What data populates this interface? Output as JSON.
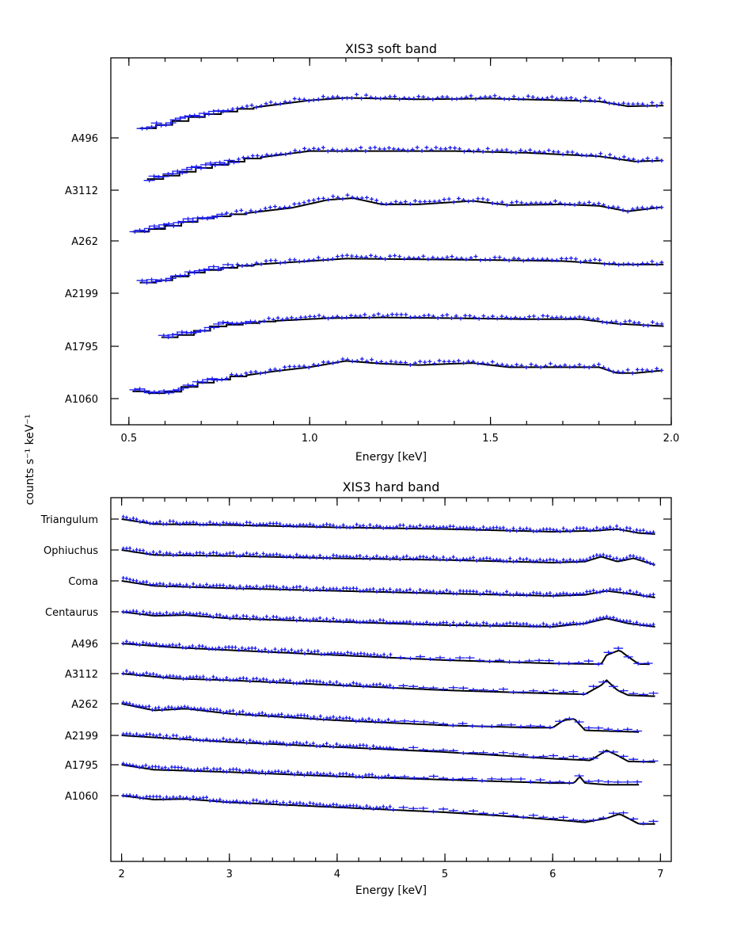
{
  "figure": {
    "ylabel": "counts s⁻¹ keV⁻¹"
  },
  "chart_data": [
    {
      "type": "line",
      "title": "XIS3 soft band",
      "xlabel": "Energy [keV]",
      "xlim": [
        0.45,
        2.0
      ],
      "xticks": [
        0.5,
        1.0,
        1.5,
        2.0
      ],
      "xtick_labels": [
        "0.5",
        "1.0",
        "1.5",
        "2.0"
      ],
      "yaxis": "offset spectra, one per cluster (arbitrary units)",
      "model_color": "#000000",
      "data_color": "#1a1af0",
      "series": [
        {
          "name": "A1060",
          "x_start": 0.51,
          "x_end": 1.98,
          "points": [
            [
              0.51,
              0.05
            ],
            [
              0.6,
              -0.05
            ],
            [
              0.7,
              0.25
            ],
            [
              0.8,
              0.45
            ],
            [
              0.9,
              0.6
            ],
            [
              1.0,
              0.72
            ],
            [
              1.1,
              0.9
            ],
            [
              1.2,
              0.82
            ],
            [
              1.3,
              0.78
            ],
            [
              1.45,
              0.84
            ],
            [
              1.55,
              0.72
            ],
            [
              1.7,
              0.72
            ],
            [
              1.8,
              0.72
            ],
            [
              1.85,
              0.55
            ],
            [
              1.9,
              0.55
            ],
            [
              1.98,
              0.63
            ]
          ]
        },
        {
          "name": "A1795",
          "x_start": 0.59,
          "x_end": 1.98,
          "points": [
            [
              0.59,
              0.0
            ],
            [
              0.66,
              0.1
            ],
            [
              0.75,
              0.35
            ],
            [
              0.9,
              0.5
            ],
            [
              1.05,
              0.58
            ],
            [
              1.2,
              0.6
            ],
            [
              1.4,
              0.58
            ],
            [
              1.6,
              0.55
            ],
            [
              1.75,
              0.55
            ],
            [
              1.85,
              0.42
            ],
            [
              1.98,
              0.35
            ]
          ]
        },
        {
          "name": "A2199",
          "x_start": 0.53,
          "x_end": 1.98,
          "points": [
            [
              0.53,
              0.0
            ],
            [
              0.6,
              0.1
            ],
            [
              0.7,
              0.35
            ],
            [
              0.85,
              0.55
            ],
            [
              1.0,
              0.65
            ],
            [
              1.1,
              0.72
            ],
            [
              1.3,
              0.7
            ],
            [
              1.5,
              0.68
            ],
            [
              1.7,
              0.65
            ],
            [
              1.85,
              0.55
            ],
            [
              1.98,
              0.55
            ]
          ]
        },
        {
          "name": "A262",
          "x_start": 0.51,
          "x_end": 1.98,
          "points": [
            [
              0.51,
              0.0
            ],
            [
              0.6,
              0.15
            ],
            [
              0.7,
              0.4
            ],
            [
              0.85,
              0.6
            ],
            [
              0.95,
              0.72
            ],
            [
              1.05,
              0.95
            ],
            [
              1.12,
              1.0
            ],
            [
              1.2,
              0.82
            ],
            [
              1.3,
              0.82
            ],
            [
              1.45,
              0.92
            ],
            [
              1.55,
              0.8
            ],
            [
              1.7,
              0.82
            ],
            [
              1.8,
              0.78
            ],
            [
              1.88,
              0.62
            ],
            [
              1.98,
              0.75
            ]
          ]
        },
        {
          "name": "A3112",
          "x_start": 0.55,
          "x_end": 1.98,
          "points": [
            [
              0.55,
              0.0
            ],
            [
              0.62,
              0.15
            ],
            [
              0.7,
              0.35
            ],
            [
              0.85,
              0.65
            ],
            [
              1.0,
              0.85
            ],
            [
              1.15,
              0.85
            ],
            [
              1.4,
              0.85
            ],
            [
              1.6,
              0.8
            ],
            [
              1.8,
              0.7
            ],
            [
              1.9,
              0.55
            ],
            [
              1.98,
              0.58
            ]
          ]
        },
        {
          "name": "A496",
          "x_start": 0.53,
          "x_end": 1.98,
          "points": [
            [
              0.53,
              0.0
            ],
            [
              0.6,
              0.15
            ],
            [
              0.7,
              0.4
            ],
            [
              0.85,
              0.65
            ],
            [
              1.0,
              0.85
            ],
            [
              1.1,
              0.92
            ],
            [
              1.3,
              0.88
            ],
            [
              1.5,
              0.9
            ],
            [
              1.7,
              0.85
            ],
            [
              1.8,
              0.82
            ],
            [
              1.88,
              0.68
            ],
            [
              1.98,
              0.7
            ]
          ]
        }
      ]
    },
    {
      "type": "line",
      "title": "XIS3 hard band",
      "xlabel": "Energy [keV]",
      "xlim": [
        1.9,
        7.1
      ],
      "xticks": [
        2,
        3,
        4,
        5,
        6,
        7
      ],
      "xtick_labels": [
        "2",
        "3",
        "4",
        "5",
        "6",
        "7"
      ],
      "yaxis": "offset spectra, one per cluster (arbitrary units)",
      "model_color": "#000000",
      "data_color": "#1a1af0",
      "series": [
        {
          "name": "A1060",
          "x_start": 2.0,
          "x_end": 6.95,
          "points": [
            [
              2.0,
              0.0
            ],
            [
              2.3,
              -0.12
            ],
            [
              2.6,
              -0.1
            ],
            [
              3.0,
              -0.2
            ],
            [
              4.0,
              -0.35
            ],
            [
              5.0,
              -0.5
            ],
            [
              5.5,
              -0.6
            ],
            [
              6.0,
              -0.72
            ],
            [
              6.3,
              -0.8
            ],
            [
              6.5,
              -0.68
            ],
            [
              6.62,
              -0.55
            ],
            [
              6.7,
              -0.68
            ],
            [
              6.8,
              -0.85
            ],
            [
              6.95,
              -0.85
            ]
          ]
        },
        {
          "name": "A1795",
          "x_start": 2.0,
          "x_end": 6.8,
          "points": [
            [
              2.0,
              0.0
            ],
            [
              2.3,
              -0.15
            ],
            [
              3.0,
              -0.22
            ],
            [
              4.0,
              -0.35
            ],
            [
              5.0,
              -0.45
            ],
            [
              6.0,
              -0.55
            ],
            [
              6.2,
              -0.55
            ],
            [
              6.25,
              -0.35
            ],
            [
              6.3,
              -0.55
            ],
            [
              6.5,
              -0.6
            ],
            [
              6.8,
              -0.6
            ]
          ]
        },
        {
          "name": "A2199",
          "x_start": 2.0,
          "x_end": 6.95,
          "points": [
            [
              2.0,
              0.0
            ],
            [
              3.0,
              -0.2
            ],
            [
              4.0,
              -0.35
            ],
            [
              5.0,
              -0.5
            ],
            [
              6.0,
              -0.7
            ],
            [
              6.35,
              -0.75
            ],
            [
              6.45,
              -0.55
            ],
            [
              6.5,
              -0.45
            ],
            [
              6.6,
              -0.6
            ],
            [
              6.7,
              -0.78
            ],
            [
              6.95,
              -0.8
            ]
          ]
        },
        {
          "name": "A262",
          "x_start": 2.0,
          "x_end": 6.8,
          "points": [
            [
              2.0,
              0.0
            ],
            [
              2.3,
              -0.2
            ],
            [
              2.6,
              -0.15
            ],
            [
              3.0,
              -0.3
            ],
            [
              4.0,
              -0.5
            ],
            [
              5.0,
              -0.65
            ],
            [
              5.8,
              -0.72
            ],
            [
              6.0,
              -0.72
            ],
            [
              6.1,
              -0.5
            ],
            [
              6.2,
              -0.45
            ],
            [
              6.3,
              -0.8
            ],
            [
              6.5,
              -0.82
            ],
            [
              6.8,
              -0.85
            ]
          ]
        },
        {
          "name": "A3112",
          "x_start": 2.0,
          "x_end": 6.95,
          "points": [
            [
              2.0,
              0.0
            ],
            [
              2.5,
              -0.15
            ],
            [
              3.0,
              -0.2
            ],
            [
              4.0,
              -0.35
            ],
            [
              5.0,
              -0.5
            ],
            [
              6.0,
              -0.6
            ],
            [
              6.3,
              -0.62
            ],
            [
              6.45,
              -0.35
            ],
            [
              6.5,
              -0.2
            ],
            [
              6.6,
              -0.5
            ],
            [
              6.7,
              -0.65
            ],
            [
              6.95,
              -0.68
            ]
          ]
        },
        {
          "name": "A496",
          "x_start": 2.0,
          "x_end": 6.9,
          "points": [
            [
              2.0,
              0.0
            ],
            [
              2.5,
              -0.12
            ],
            [
              3.0,
              -0.2
            ],
            [
              4.0,
              -0.35
            ],
            [
              5.0,
              -0.5
            ],
            [
              6.0,
              -0.6
            ],
            [
              6.45,
              -0.62
            ],
            [
              6.5,
              -0.35
            ],
            [
              6.62,
              -0.2
            ],
            [
              6.7,
              -0.4
            ],
            [
              6.8,
              -0.62
            ],
            [
              6.9,
              -0.62
            ]
          ]
        },
        {
          "name": "Centaurus",
          "x_start": 2.0,
          "x_end": 6.95,
          "points": [
            [
              2.0,
              0.0
            ],
            [
              2.3,
              -0.12
            ],
            [
              2.6,
              -0.1
            ],
            [
              3.0,
              -0.2
            ],
            [
              4.0,
              -0.3
            ],
            [
              5.0,
              -0.4
            ],
            [
              6.0,
              -0.45
            ],
            [
              6.3,
              -0.35
            ],
            [
              6.5,
              -0.2
            ],
            [
              6.7,
              -0.35
            ],
            [
              6.95,
              -0.45
            ]
          ]
        },
        {
          "name": "Coma",
          "x_start": 2.0,
          "x_end": 6.95,
          "points": [
            [
              2.0,
              0.0
            ],
            [
              2.3,
              -0.15
            ],
            [
              3.0,
              -0.22
            ],
            [
              4.0,
              -0.3
            ],
            [
              5.0,
              -0.38
            ],
            [
              6.0,
              -0.45
            ],
            [
              6.3,
              -0.42
            ],
            [
              6.5,
              -0.3
            ],
            [
              6.7,
              -0.38
            ],
            [
              6.95,
              -0.5
            ]
          ]
        },
        {
          "name": "Ophiuchus",
          "x_start": 2.0,
          "x_end": 6.95,
          "points": [
            [
              2.0,
              0.0
            ],
            [
              2.3,
              -0.15
            ],
            [
              3.0,
              -0.18
            ],
            [
              4.0,
              -0.25
            ],
            [
              5.0,
              -0.3
            ],
            [
              6.0,
              -0.38
            ],
            [
              6.3,
              -0.35
            ],
            [
              6.45,
              -0.2
            ],
            [
              6.6,
              -0.35
            ],
            [
              6.75,
              -0.25
            ],
            [
              6.95,
              -0.45
            ]
          ]
        },
        {
          "name": "Triangulum",
          "x_start": 2.0,
          "x_end": 6.95,
          "points": [
            [
              2.0,
              0.0
            ],
            [
              2.3,
              -0.15
            ],
            [
              3.0,
              -0.18
            ],
            [
              4.0,
              -0.25
            ],
            [
              5.0,
              -0.3
            ],
            [
              6.0,
              -0.38
            ],
            [
              6.4,
              -0.35
            ],
            [
              6.6,
              -0.3
            ],
            [
              6.8,
              -0.42
            ],
            [
              6.95,
              -0.45
            ]
          ]
        }
      ]
    }
  ]
}
